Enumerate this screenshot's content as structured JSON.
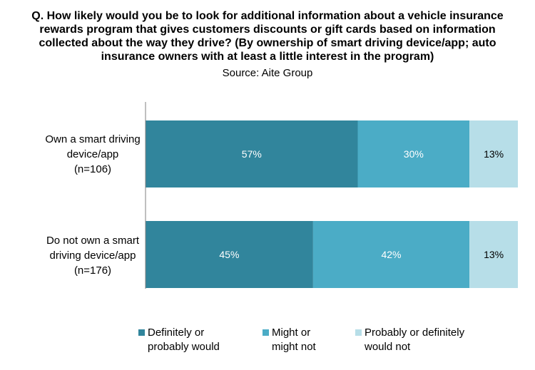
{
  "chart_data": {
    "type": "bar",
    "orientation": "horizontal",
    "stacked": true,
    "title_lines": [
      "Q. How likely would you be to look for additional information about a vehicle insurance",
      "rewards program that gives customers  discounts  or gift cards based on information",
      "collected about the way they drive? (By ownership of smart driving device/app; auto",
      "insurance  owners with at least a little interest in the program)"
    ],
    "subtitle": "Source:  Aite Group",
    "categories": [
      {
        "lines": [
          "Own a smart driving",
          "device/app",
          "(n=106)"
        ]
      },
      {
        "lines": [
          "Do not own a smart",
          "driving device/app",
          "(n=176)"
        ]
      }
    ],
    "series": [
      {
        "name": "Definitely or probably would",
        "legend_lines": [
          "Definitely or",
          "probably would"
        ],
        "color": "#31859c",
        "label_color": "#ffffff",
        "values": [
          57,
          45
        ],
        "labels": [
          "57%",
          "45%"
        ]
      },
      {
        "name": "Might or might not",
        "legend_lines": [
          "Might or",
          "might not"
        ],
        "color": "#4bacc6",
        "label_color": "#ffffff",
        "values": [
          30,
          42
        ],
        "labels": [
          "30%",
          "42%"
        ]
      },
      {
        "name": "Probably or definitely would not",
        "legend_lines": [
          "Probably or definitely",
          "would not"
        ],
        "color": "#b7dee8",
        "label_color": "#000000",
        "values": [
          13,
          13
        ],
        "labels": [
          "13%",
          "13%"
        ]
      }
    ],
    "xlim": [
      0,
      100
    ],
    "xlabel": "",
    "ylabel": "",
    "grid": false,
    "legend_position": "bottom"
  }
}
